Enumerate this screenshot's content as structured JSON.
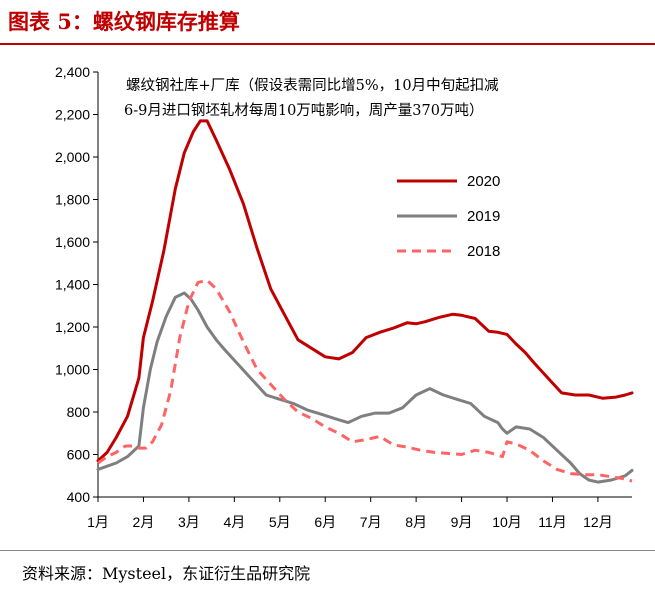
{
  "figure": {
    "title": "图表 5：螺纹钢库存推算",
    "source": "资料来源：Mysteel，东证衍生品研究院"
  },
  "chart_data": {
    "type": "line",
    "title": "",
    "annotation": [
      "螺纹钢社库+厂库（假设表需同比增5%，10月中旬起扣减",
      "6-9月进口钢坯轧材每周10万吨影响，周产量370万吨）"
    ],
    "xlabel": "",
    "ylabel": "",
    "categories": [
      "1月",
      "2月",
      "3月",
      "4月",
      "5月",
      "6月",
      "7月",
      "8月",
      "9月",
      "10月",
      "11月",
      "12月"
    ],
    "xlim": [
      1,
      12.75
    ],
    "ylim": [
      400,
      2400
    ],
    "yticks": [
      400,
      600,
      800,
      1000,
      1200,
      1400,
      1600,
      1800,
      2000,
      2200,
      2400
    ],
    "ytick_labels": [
      "400",
      "600",
      "800",
      "1,000",
      "1,200",
      "1,400",
      "1,600",
      "1,800",
      "2,000",
      "2,200",
      "2,400"
    ],
    "grid": false,
    "legend_position": "upper-right",
    "series": [
      {
        "name": "2020",
        "color": "#c00000",
        "style": "solid",
        "x": [
          1.0,
          1.2,
          1.4,
          1.65,
          1.9,
          2.0,
          2.2,
          2.45,
          2.7,
          2.9,
          3.1,
          3.25,
          3.4,
          3.6,
          3.9,
          4.2,
          4.5,
          4.8,
          5.1,
          5.4,
          5.7,
          6.0,
          6.3,
          6.6,
          6.9,
          7.2,
          7.5,
          7.8,
          8.0,
          8.2,
          8.5,
          8.8,
          9.0,
          9.3,
          9.6,
          9.8,
          10.0,
          10.2,
          10.4,
          10.6,
          10.9,
          11.2,
          11.5,
          11.8,
          12.1,
          12.4,
          12.6,
          12.75
        ],
        "y": [
          570,
          610,
          680,
          780,
          960,
          1150,
          1320,
          1560,
          1850,
          2020,
          2120,
          2170,
          2170,
          2080,
          1940,
          1780,
          1570,
          1380,
          1260,
          1140,
          1100,
          1060,
          1050,
          1080,
          1150,
          1175,
          1195,
          1220,
          1215,
          1225,
          1245,
          1260,
          1255,
          1240,
          1180,
          1175,
          1165,
          1120,
          1080,
          1030,
          960,
          890,
          880,
          880,
          865,
          870,
          880,
          890
        ]
      },
      {
        "name": "2019",
        "color": "#7f7f7f",
        "style": "solid",
        "x": [
          1.0,
          1.2,
          1.4,
          1.65,
          1.9,
          2.0,
          2.15,
          2.3,
          2.5,
          2.7,
          2.9,
          3.05,
          3.2,
          3.4,
          3.6,
          3.8,
          4.1,
          4.4,
          4.7,
          5.0,
          5.3,
          5.6,
          5.9,
          6.2,
          6.5,
          6.8,
          7.1,
          7.4,
          7.7,
          8.0,
          8.3,
          8.6,
          8.9,
          9.2,
          9.5,
          9.8,
          9.9,
          10.0,
          10.2,
          10.5,
          10.8,
          11.1,
          11.4,
          11.6,
          11.8,
          12.0,
          12.3,
          12.6,
          12.75
        ],
        "y": [
          530,
          545,
          560,
          590,
          640,
          820,
          1000,
          1130,
          1250,
          1340,
          1360,
          1330,
          1280,
          1200,
          1140,
          1090,
          1020,
          950,
          880,
          860,
          840,
          810,
          790,
          770,
          750,
          780,
          795,
          795,
          820,
          880,
          910,
          880,
          860,
          840,
          780,
          750,
          720,
          700,
          730,
          720,
          680,
          620,
          560,
          510,
          480,
          470,
          480,
          500,
          525
        ]
      },
      {
        "name": "2018",
        "color": "#ff6464",
        "style": "dashed",
        "x": [
          1.0,
          1.2,
          1.4,
          1.6,
          1.75,
          1.9,
          2.05,
          2.2,
          2.4,
          2.6,
          2.8,
          3.0,
          3.2,
          3.4,
          3.6,
          3.9,
          4.2,
          4.5,
          4.8,
          5.1,
          5.4,
          5.7,
          6.0,
          6.3,
          6.6,
          6.9,
          7.2,
          7.5,
          7.8,
          8.1,
          8.4,
          8.7,
          9.0,
          9.3,
          9.6,
          9.9,
          10.0,
          10.2,
          10.5,
          10.8,
          11.1,
          11.4,
          11.7,
          12.0,
          12.3,
          12.6,
          12.75
        ],
        "y": [
          560,
          590,
          610,
          640,
          640,
          630,
          630,
          660,
          740,
          900,
          1150,
          1320,
          1410,
          1420,
          1380,
          1270,
          1130,
          1000,
          930,
          860,
          800,
          770,
          730,
          700,
          660,
          670,
          685,
          645,
          635,
          620,
          610,
          605,
          600,
          620,
          610,
          590,
          660,
          650,
          620,
          570,
          530,
          510,
          505,
          505,
          495,
          485,
          475
        ]
      }
    ]
  }
}
